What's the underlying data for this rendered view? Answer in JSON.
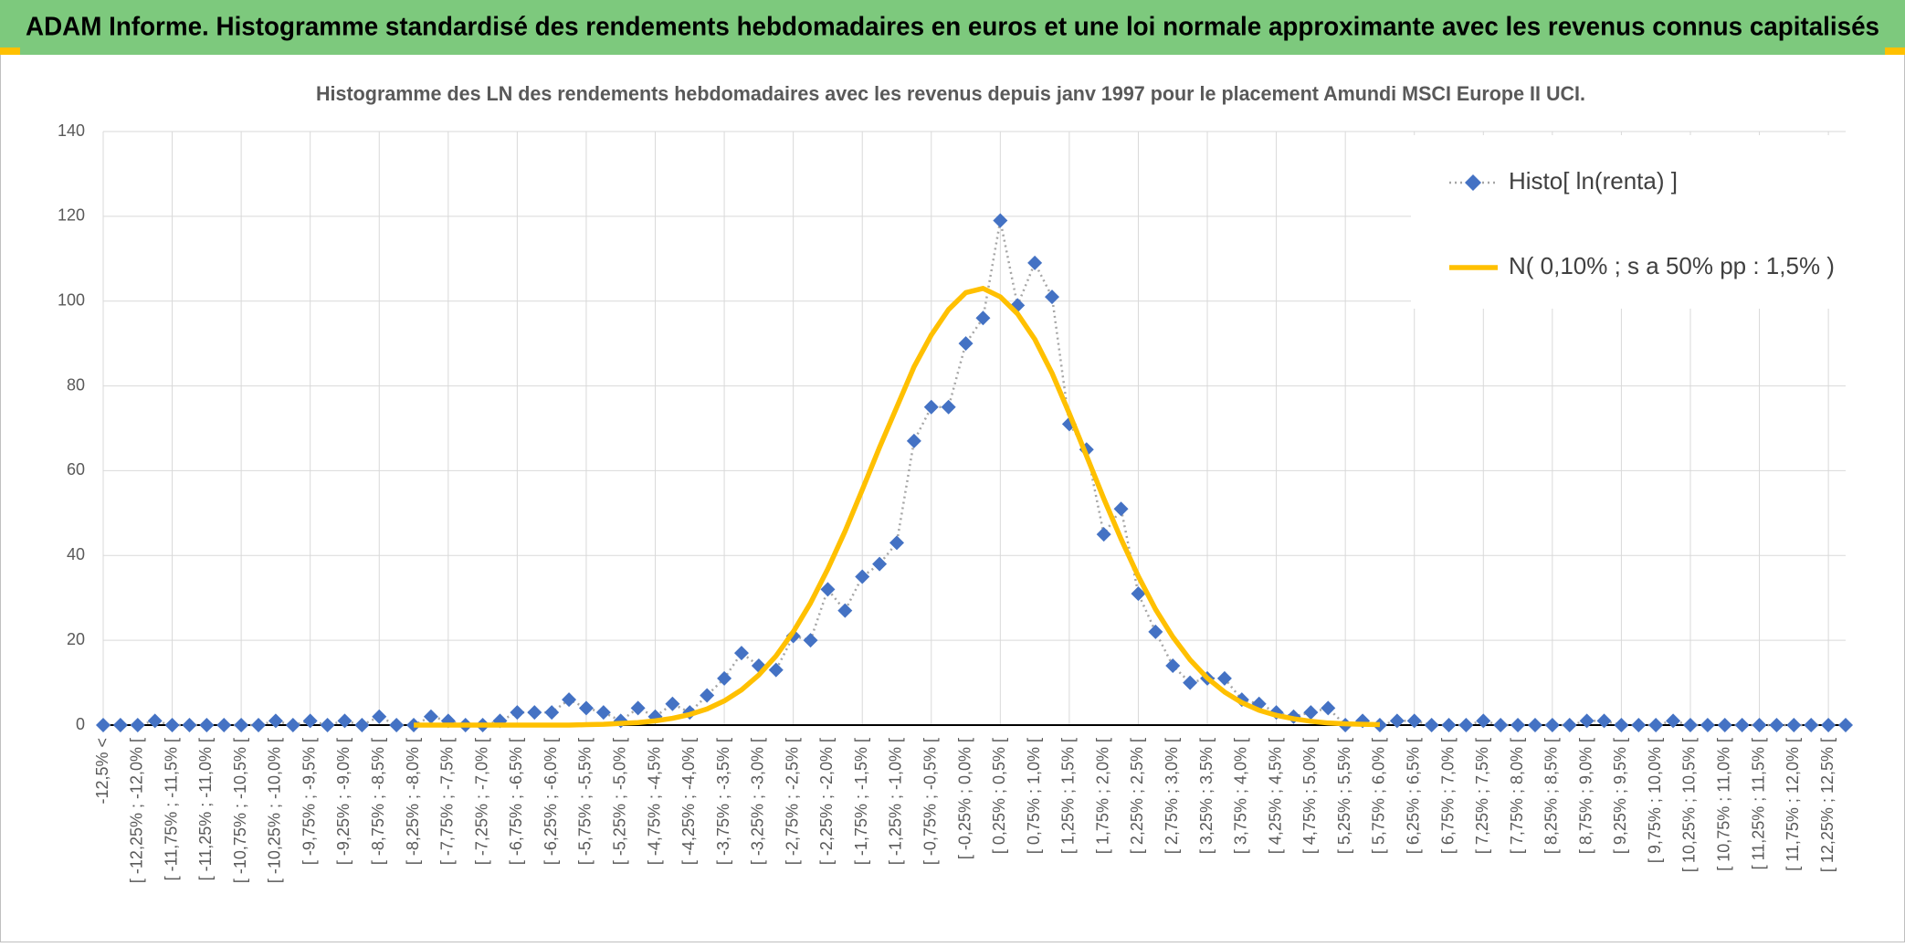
{
  "chart_data": {
    "type": "line",
    "banner": "ADAM Informe. Histogramme standardisé des rendements hebdomadaires en euros et une loi normale approximante avec les revenus connus capitalisés",
    "title": "Histogramme des LN des rendements hebdomadaires avec les revenus depuis janv 1997 pour le placement Amundi MSCI Europe II UCI.",
    "categories": [
      "-12,5% <",
      null,
      "[ -12,25% ; -12,0% [",
      null,
      "[ -11,75% ; -11,5% [",
      null,
      "[ -11,25% ; -11,0% [",
      null,
      "[ -10,75% ; -10,5% [",
      null,
      "[ -10,25% ; -10,0% [",
      null,
      "[ -9,75% ; -9,5% [",
      null,
      "[ -9,25% ; -9,0% [",
      null,
      "[ -8,75% ; -8,5% [",
      null,
      "[ -8,25% ; -8,0% [",
      null,
      "[ -7,75% ; -7,5% [",
      null,
      "[ -7,25% ; -7,0% [",
      null,
      "[ -6,75% ; -6,5% [",
      null,
      "[ -6,25% ; -6,0% [",
      null,
      "[ -5,75% ; -5,5% [",
      null,
      "[ -5,25% ; -5,0% [",
      null,
      "[ -4,75% ; -4,5% [",
      null,
      "[ -4,25% ; -4,0% [",
      null,
      "[ -3,75% ; -3,5% [",
      null,
      "[ -3,25% ; -3,0% [",
      null,
      "[ -2,75% ; -2,5% [",
      null,
      "[ -2,25% ; -2,0% [",
      null,
      "[ -1,75% ; -1,5% [",
      null,
      "[ -1,25% ; -1,0% [",
      null,
      "[ -0,75% ; -0,5% [",
      null,
      "[ -0,25% ; 0,0% [",
      null,
      "[ 0,25% ; 0,5% [",
      null,
      "[ 0,75% ; 1,0% [",
      null,
      "[ 1,25% ; 1,5% [",
      null,
      "[ 1,75% ; 2,0% [",
      null,
      "[ 2,25% ; 2,5% [",
      null,
      "[ 2,75% ; 3,0% [",
      null,
      "[ 3,25% ; 3,5% [",
      null,
      "[ 3,75% ; 4,0% [",
      null,
      "[ 4,25% ; 4,5% [",
      null,
      "[ 4,75% ; 5,0% [",
      null,
      "[ 5,25% ; 5,5% [",
      null,
      "[ 5,75% ; 6,0% [",
      null,
      "[ 6,25% ; 6,5% [",
      null,
      "[ 6,75% ; 7,0% [",
      null,
      "[ 7,25% ; 7,5% [",
      null,
      "[ 7,75% ; 8,0% [",
      null,
      "[ 8,25% ; 8,5% [",
      null,
      "[ 8,75% ; 9,0% [",
      null,
      "[ 9,25% ; 9,5% [",
      null,
      "[ 9,75% ; 10,0% [",
      null,
      "[ 10,25% ; 10,5% [",
      null,
      "[ 10,75% ; 11,0% [",
      null,
      "[ 11,25% ; 11,5% [",
      null,
      "[ 11,75% ; 12,0% [",
      null,
      "[ 12,25% ; 12,5% [",
      null
    ],
    "series": [
      {
        "name": "Histo[ ln(renta) ]",
        "color": "#4472c4",
        "line_color": "#a5a5a5",
        "marker": "diamond",
        "values": [
          0,
          0,
          0,
          1,
          0,
          0,
          0,
          0,
          0,
          0,
          1,
          0,
          1,
          0,
          1,
          0,
          2,
          0,
          0,
          2,
          1,
          0,
          0,
          1,
          3,
          3,
          3,
          6,
          4,
          3,
          1,
          4,
          2,
          5,
          3,
          7,
          11,
          17,
          14,
          13,
          21,
          20,
          32,
          27,
          35,
          38,
          43,
          67,
          75,
          75,
          90,
          96,
          119,
          99,
          109,
          101,
          71,
          65,
          45,
          51,
          31,
          22,
          14,
          10,
          11,
          11,
          6,
          5,
          3,
          2,
          3,
          4,
          0,
          1,
          0,
          1,
          1,
          0,
          0,
          0,
          1,
          0,
          0,
          0,
          0,
          0,
          1,
          1,
          0,
          0,
          0,
          1,
          0,
          0,
          0,
          0,
          0,
          0,
          0,
          0,
          0,
          0
        ]
      },
      {
        "name": "N( 0,10% ; s a 50% pp : 1,5% )",
        "color": "#ffc000",
        "marker": "none",
        "values": [
          null,
          null,
          null,
          null,
          null,
          null,
          null,
          null,
          null,
          null,
          null,
          null,
          null,
          null,
          null,
          null,
          null,
          null,
          0,
          0,
          0,
          0,
          0,
          0,
          0,
          0,
          0,
          0,
          0.1,
          0.2,
          0.4,
          0.6,
          1.0,
          1.6,
          2.5,
          3.8,
          5.7,
          8.3,
          11.8,
          16.3,
          22.0,
          28.8,
          36.8,
          45.7,
          55.5,
          65.5,
          75,
          84.5,
          92,
          98,
          102,
          103,
          101,
          97,
          91,
          83,
          73.5,
          63.5,
          53.4,
          43.9,
          35.1,
          27.3,
          20.8,
          15.4,
          11.1,
          7.8,
          5.3,
          3.5,
          2.3,
          1.5,
          0.9,
          0.5,
          0.3,
          0.2,
          0.1,
          null,
          null,
          null,
          null,
          null,
          null,
          null,
          null,
          null,
          null,
          null,
          null,
          null,
          null,
          null,
          null,
          null,
          null,
          null,
          null,
          null,
          null,
          null,
          null,
          null,
          null,
          null
        ]
      }
    ],
    "ylim": [
      0,
      140
    ],
    "yticks": [
      0,
      20,
      40,
      60,
      80,
      100,
      120,
      140
    ],
    "grid": true,
    "legend": "top-right"
  }
}
